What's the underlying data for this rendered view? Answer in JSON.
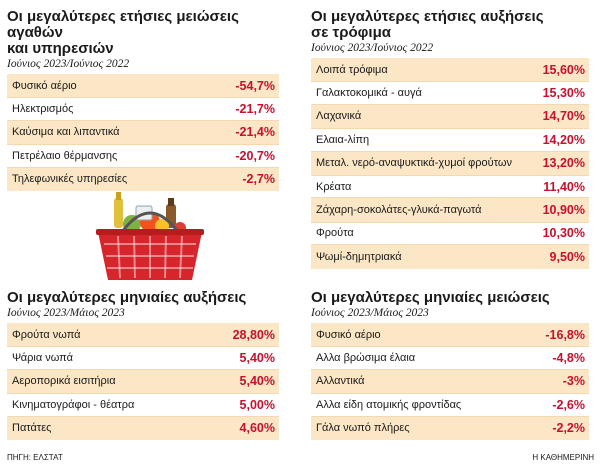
{
  "panels": {
    "annual_decreases": {
      "title_line1": "Οι μεγαλύτερες ετήσιες μειώσεις αγαθών",
      "title_line2": "και υπηρεσιών",
      "subtitle": "Ιούνιος 2023/Ιούνιος 2022",
      "rows": [
        {
          "label": "Φυσικό αέριο",
          "value": "-54,7%"
        },
        {
          "label": "Ηλεκτρισμός",
          "value": "-21,7%"
        },
        {
          "label": "Καύσιμα και λιπαντικά",
          "value": "-21,4%"
        },
        {
          "label": "Πετρέλαιο θέρμανσης",
          "value": "-20,7%"
        },
        {
          "label": "Τηλεφωνικές υπηρεσίες",
          "value": "-2,7%"
        }
      ]
    },
    "annual_increases": {
      "title_line1": "Οι μεγαλύτερες ετήσιες αυξήσεις",
      "title_line2": "σε τρόφιμα",
      "subtitle": "Ιούνιος 2023/Ιούνιος 2022",
      "rows": [
        {
          "label": "Λοιπά τρόφιμα",
          "value": "15,60%"
        },
        {
          "label": "Γαλακτοκομικά - αυγά",
          "value": "15,30%"
        },
        {
          "label": "Λαχανικά",
          "value": "14,70%"
        },
        {
          "label": "Ελαια-λίπη",
          "value": "14,20%"
        },
        {
          "label": "Μεταλ. νερό-αναψυκτικά-χυμοί φρούτων",
          "value": "13,20%"
        },
        {
          "label": "Κρέατα",
          "value": "11,40%"
        },
        {
          "label": "Ζάχαρη-σοκολάτες-γλυκά-παγωτά",
          "value": "10,90%"
        },
        {
          "label": "Φρούτα",
          "value": "10,30%"
        },
        {
          "label": "Ψωμί-δημητριακά",
          "value": "9,50%"
        }
      ]
    },
    "monthly_increases": {
      "title": "Οι μεγαλύτερες μηνιαίες αυξήσεις",
      "subtitle": "Ιούνιος 2023/Μάιος 2023",
      "rows": [
        {
          "label": "Φρούτα νωπά",
          "value": "28,80%"
        },
        {
          "label": "Ψάρια νωπά",
          "value": "5,40%"
        },
        {
          "label": "Αεροπορικά εισιτήρια",
          "value": "5,40%"
        },
        {
          "label": "Κινηματογράφοι - θέατρα",
          "value": "5,00%"
        },
        {
          "label": "Πατάτες",
          "value": "4,60%"
        }
      ]
    },
    "monthly_decreases": {
      "title": "Οι μεγαλύτερες μηνιαίες μειώσεις",
      "subtitle": "Ιούνιος 2023/Μάιος 2023",
      "rows": [
        {
          "label": "Φυσικό αέριο",
          "value": "-16,8%"
        },
        {
          "label": "Αλλα βρώσιμα έλαια",
          "value": "-4,8%"
        },
        {
          "label": "Αλλαντικά",
          "value": "-3%"
        },
        {
          "label": "Αλλα είδη ατομικής φροντίδας",
          "value": "-2,6%"
        },
        {
          "label": "Γάλα νωπό πλήρες",
          "value": "-2,2%"
        }
      ]
    }
  },
  "footer": {
    "source": "ΠΗΓΗ: ΕΛΣΤΑΤ",
    "publisher": "Η ΚΑΘΗΜΕΡΙΝΗ"
  },
  "colors": {
    "row_stripe": "#fbe6c5",
    "value_red": "#c8102e",
    "basket_red": "#d7262b"
  }
}
